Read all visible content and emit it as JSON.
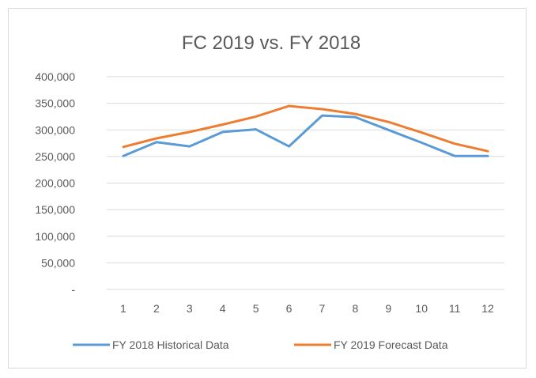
{
  "chart_data": {
    "type": "line",
    "title": "FC 2019 vs. FY 2018",
    "xlabel": "",
    "ylabel": "",
    "categories": [
      "1",
      "2",
      "3",
      "4",
      "5",
      "6",
      "7",
      "8",
      "9",
      "10",
      "11",
      "12"
    ],
    "ylim": [
      0,
      400000
    ],
    "yticks": [
      0,
      50000,
      100000,
      150000,
      200000,
      250000,
      300000,
      350000,
      400000
    ],
    "ytick_labels": [
      "-",
      "50,000",
      "100,000",
      "150,000",
      "200,000",
      "250,000",
      "300,000",
      "350,000",
      "400,000"
    ],
    "grid": true,
    "legend_position": "bottom",
    "series": [
      {
        "name": "FY 2018 Historical Data",
        "color": "#5b9bd5",
        "values": [
          251000,
          277000,
          269000,
          296000,
          301000,
          269000,
          327000,
          324000,
          300000,
          276000,
          251000,
          251000
        ]
      },
      {
        "name": "FY 2019 Forecast Data",
        "color": "#ed7d31",
        "values": [
          268000,
          284000,
          296000,
          310000,
          325000,
          345000,
          339000,
          330000,
          315000,
          295000,
          274000,
          260000
        ]
      }
    ]
  }
}
